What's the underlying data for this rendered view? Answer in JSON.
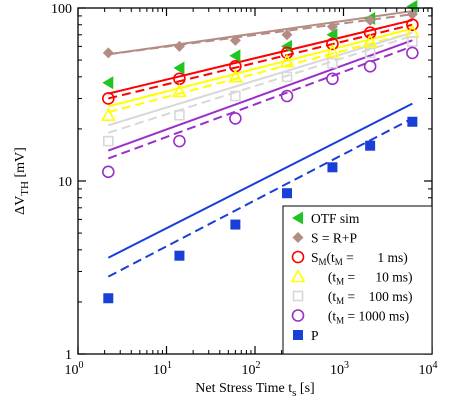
{
  "chart_data": {
    "type": "scatter",
    "xscale": "log",
    "yscale": "log",
    "xlim": [
      1,
      10000
    ],
    "ylim": [
      1,
      100
    ],
    "xlabel": {
      "main": "Net Stress Time  t",
      "sub": "s",
      "unit": "  [s]"
    },
    "ylabel": {
      "pre": "ΔV",
      "sub": "TH",
      "unit": "  [mV]"
    },
    "xticks": [
      {
        "base": "10",
        "exp": "0",
        "value": 1
      },
      {
        "base": "10",
        "exp": "1",
        "value": 10
      },
      {
        "base": "10",
        "exp": "2",
        "value": 100
      },
      {
        "base": "10",
        "exp": "3",
        "value": 1000
      },
      {
        "base": "10",
        "exp": "4",
        "value": 10000
      }
    ],
    "yticks": [
      {
        "label": "1",
        "value": 1
      },
      {
        "label": "10",
        "value": 10
      },
      {
        "label": "100",
        "value": 100
      }
    ],
    "x": [
      2.2,
      14,
      60,
      230,
      750,
      2000,
      6000
    ],
    "series": [
      {
        "name": "OTF sim",
        "marker": "triangle-left-filled",
        "color": "#22c422",
        "values": [
          37,
          45,
          53,
          60,
          70,
          87,
          102
        ]
      },
      {
        "name": "S = R+P",
        "marker": "diamond-filled",
        "color": "#b48c86",
        "values": [
          55,
          60,
          65,
          70,
          78,
          85,
          92
        ],
        "fit_solid": [
          [
            2.2,
            54
          ],
          [
            6000,
            96
          ]
        ],
        "fit_dashed": [
          [
            2.2,
            54
          ],
          [
            6000,
            92
          ]
        ]
      },
      {
        "name": "S_M(t_M = 1 ms)",
        "marker": "circle-open",
        "color": "#ff0000",
        "values": [
          30,
          39,
          46,
          55,
          62,
          72,
          80
        ],
        "fit_solid": [
          [
            2.2,
            32
          ],
          [
            6000,
            85
          ]
        ],
        "fit_dashed": [
          [
            2.2,
            30
          ],
          [
            6000,
            80
          ]
        ]
      },
      {
        "name": "S_M(t_M = 10 ms)",
        "marker": "triangle-up-open",
        "color": "#ffff00",
        "values": [
          24,
          33,
          40,
          49,
          56,
          64,
          73
        ],
        "fit_solid": [
          [
            2.2,
            27
          ],
          [
            6000,
            76
          ]
        ],
        "fit_dashed": [
          [
            2.2,
            25
          ],
          [
            6000,
            72
          ]
        ]
      },
      {
        "name": "S_M(t_M = 100 ms)",
        "marker": "square-open",
        "color": "#d8d8d8",
        "values": [
          17,
          24,
          31,
          40,
          48,
          55,
          64
        ],
        "fit_solid": [
          [
            2.2,
            21
          ],
          [
            6000,
            72
          ]
        ],
        "fit_dashed": [
          [
            2.2,
            19
          ],
          [
            6000,
            69
          ]
        ]
      },
      {
        "name": "S_M(t_M = 1000 ms)",
        "marker": "circle-open",
        "color": "#9a30c8",
        "values": [
          11.3,
          17,
          23,
          31,
          39,
          46,
          55
        ],
        "fit_solid": [
          [
            2.2,
            15
          ],
          [
            6000,
            65
          ]
        ],
        "fit_dashed": [
          [
            2.2,
            13.5
          ],
          [
            6000,
            60
          ]
        ]
      },
      {
        "name": "P",
        "marker": "square-filled",
        "color": "#1a3fd6",
        "values": [
          2.1,
          3.7,
          5.6,
          8.5,
          12,
          16,
          22
        ],
        "fit_solid": [
          [
            2.2,
            3.6
          ],
          [
            6000,
            28
          ]
        ],
        "fit_dashed": [
          [
            2.2,
            2.8
          ],
          [
            6000,
            23
          ]
        ]
      }
    ],
    "legend": {
      "placement": "bottom-right",
      "entries": [
        {
          "series": 0,
          "parts": [
            {
              "t": "OTF sim"
            }
          ]
        },
        {
          "series": 1,
          "parts": [
            {
              "t": "S = R+P"
            }
          ]
        },
        {
          "series": 2,
          "parts": [
            {
              "t": "S"
            },
            {
              "t": "M",
              "sub": true
            },
            {
              "t": "(t"
            },
            {
              "t": "M",
              "sub": true
            },
            {
              "t": " =       1 ms)"
            }
          ]
        },
        {
          "series": 3,
          "parts": [
            {
              "t": "     (t"
            },
            {
              "t": "M",
              "sub": true
            },
            {
              "t": " =      10 ms)"
            }
          ]
        },
        {
          "series": 4,
          "parts": [
            {
              "t": "     (t"
            },
            {
              "t": "M",
              "sub": true
            },
            {
              "t": " =    100 ms)"
            }
          ]
        },
        {
          "series": 5,
          "parts": [
            {
              "t": "     (t"
            },
            {
              "t": "M",
              "sub": true
            },
            {
              "t": " = 1000 ms)"
            }
          ]
        },
        {
          "series": 6,
          "parts": [
            {
              "t": "P"
            }
          ]
        }
      ]
    }
  }
}
